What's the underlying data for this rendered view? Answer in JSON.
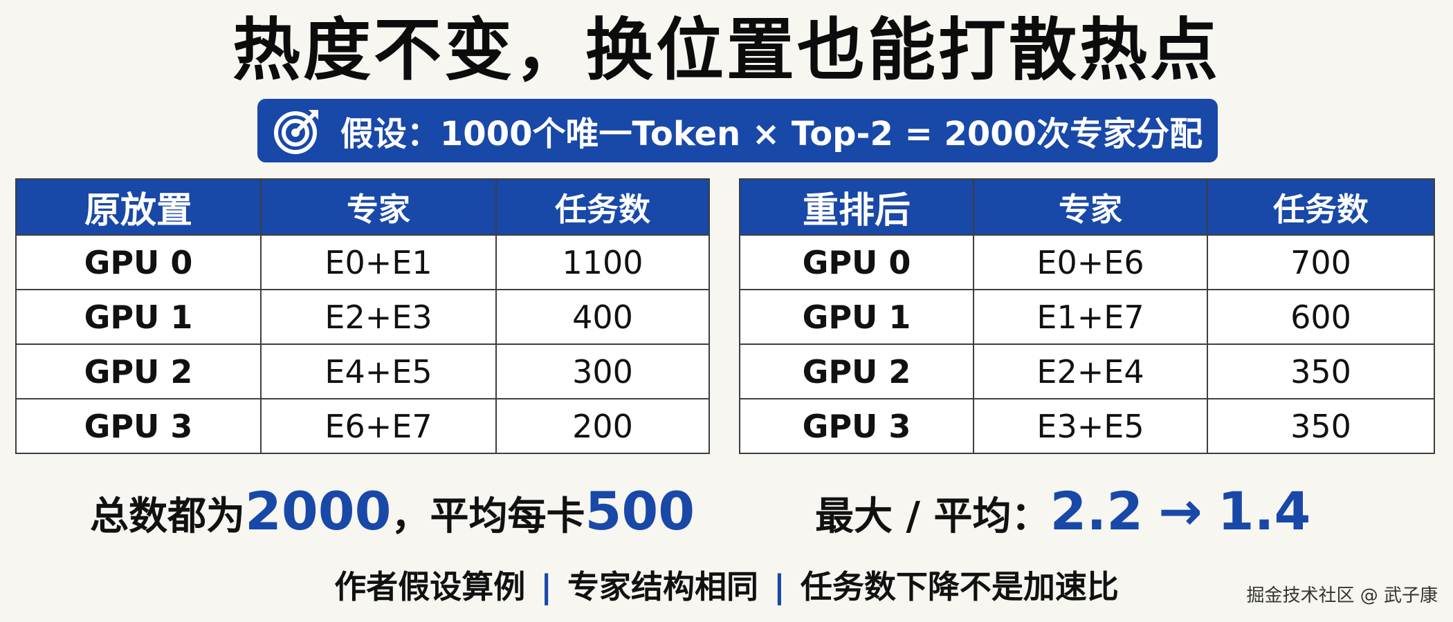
{
  "title": "热度不变，换位置也能打散热点",
  "assumption": "假设：1000个唯一Token × Top-2 = 2000次专家分配",
  "table_original": {
    "headers": [
      "原放置",
      "专家",
      "任务数"
    ],
    "rows": [
      {
        "gpu": "GPU 0",
        "experts": "E0+E1",
        "tasks": "1100"
      },
      {
        "gpu": "GPU 1",
        "experts": "E2+E3",
        "tasks": "400"
      },
      {
        "gpu": "GPU 2",
        "experts": "E4+E5",
        "tasks": "300"
      },
      {
        "gpu": "GPU 3",
        "experts": "E6+E7",
        "tasks": "200"
      }
    ]
  },
  "table_rearranged": {
    "headers": [
      "重排后",
      "专家",
      "任务数"
    ],
    "rows": [
      {
        "gpu": "GPU 0",
        "experts": "E0+E6",
        "tasks": "700"
      },
      {
        "gpu": "GPU 1",
        "experts": "E1+E7",
        "tasks": "600"
      },
      {
        "gpu": "GPU 2",
        "experts": "E2+E4",
        "tasks": "350"
      },
      {
        "gpu": "GPU 3",
        "experts": "E3+E5",
        "tasks": "350"
      }
    ]
  },
  "summary_left": {
    "prefix": "总数都为",
    "total": "2000",
    "middle": "，平均每卡",
    "avg": "500"
  },
  "summary_right": {
    "label": "最大 / 平均：",
    "before": "2.2",
    "arrow": "→",
    "after": "1.4"
  },
  "footer": {
    "items": [
      "作者假设算例",
      "专家结构相同",
      "任务数下降不是加速比"
    ],
    "separator": "|"
  },
  "watermark": "掘金技术社区 @ 武子康",
  "colors": {
    "accent": "#1848a8",
    "background": "#f7f6f1"
  },
  "icons": {
    "assumption": "target-icon"
  }
}
